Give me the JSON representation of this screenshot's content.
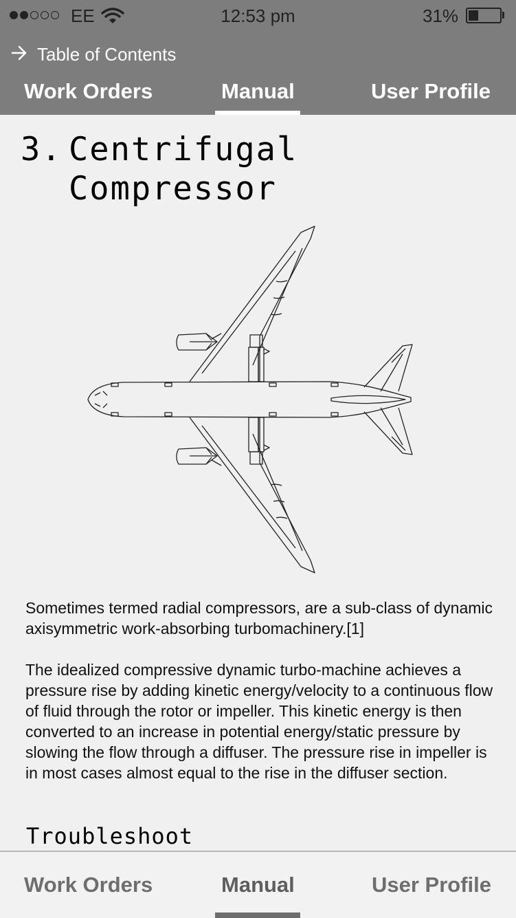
{
  "status_bar": {
    "carrier": "EE",
    "time": "12:53 pm",
    "battery_percent": "31%",
    "battery_level": 0.31,
    "signal_bars_filled": 2,
    "signal_bars_total": 5
  },
  "header": {
    "toc_label": "Table of Contents",
    "tabs": [
      {
        "label": "Work Orders"
      },
      {
        "label": "Manual"
      },
      {
        "label": "User Profile"
      }
    ],
    "active_tab": "Manual"
  },
  "content": {
    "title_number": "3.",
    "title_text": "Centrifugal Compressor",
    "figure_icon": "airplane-top-view-diagram",
    "paragraphs": [
      "Sometimes termed radial compressors, are a sub-class of dynamic axisymmetric work-absorbing turbomachinery.[1]",
      "The idealized compressive dynamic turbo-machine achieves a pressure rise by adding kinetic energy/velocity to a continuous flow of fluid through the rotor or impeller. This kinetic energy is then converted to an increase in potential energy/static pressure by slowing the flow through a diffuser. The pressure rise in impeller is in most cases almost equal to the rise in the diffuser section."
    ],
    "section_heading": "Troubleshoot"
  },
  "bottom_tabs": [
    {
      "label": "Work Orders"
    },
    {
      "label": "Manual"
    },
    {
      "label": "User Profile"
    }
  ],
  "colors": {
    "header_bg": "#7d7d7d",
    "page_bg": "#f0f0f0",
    "tab_text_bottom": "#6e6e6e"
  }
}
